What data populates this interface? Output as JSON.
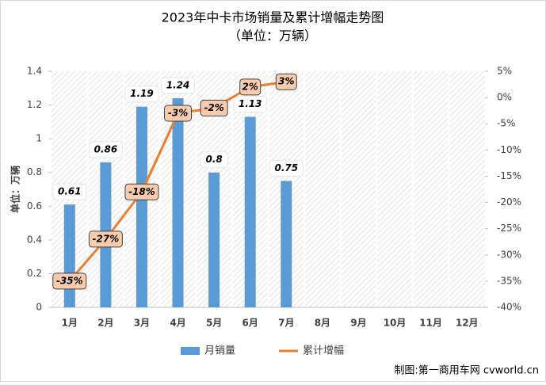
{
  "chart_data": {
    "type": "bar_line",
    "title": "2023年中卡市场销量及累计增幅走势图",
    "subtitle": "（单位：万辆）",
    "y_label": "单位：万辆",
    "source": "制图:第一商用车网 cvworld.cn",
    "categories": [
      "1月",
      "2月",
      "3月",
      "4月",
      "5月",
      "6月",
      "7月",
      "8月",
      "9月",
      "10月",
      "11月",
      "12月"
    ],
    "series": [
      {
        "name": "月销量",
        "color": "#5b9bd5",
        "type": "bar",
        "values": [
          0.61,
          0.86,
          1.19,
          1.24,
          0.8,
          1.13,
          0.75,
          null,
          null,
          null,
          null,
          null
        ]
      },
      {
        "name": "累计增幅",
        "color": "#ed7d31",
        "type": "line",
        "axis": "y2",
        "values": [
          -35,
          -27,
          -18,
          -3,
          -2,
          2,
          3,
          null,
          null,
          null,
          null,
          null
        ],
        "value_labels": [
          "-35%",
          "-27%",
          "-18%",
          "-3%",
          "-2%",
          "2%",
          "3%",
          null,
          null,
          null,
          null,
          null
        ]
      }
    ],
    "ylim": [
      0,
      1.4
    ],
    "yticks": [
      0,
      0.2,
      0.4,
      0.6,
      0.8,
      1,
      1.2,
      1.4
    ],
    "y2lim": [
      -40,
      5
    ],
    "y2ticks": [
      {
        "value": -40,
        "label": "-40%"
      },
      {
        "value": -35,
        "label": "-35%"
      },
      {
        "value": -30,
        "label": "-30%"
      },
      {
        "value": -25,
        "label": "-25%"
      },
      {
        "value": -20,
        "label": "-20%"
      },
      {
        "value": -15,
        "label": "-15%"
      },
      {
        "value": -10,
        "label": "-10%"
      },
      {
        "value": -5,
        "label": "-5%"
      },
      {
        "value": 0,
        "label": "0%"
      },
      {
        "value": 5,
        "label": "5%"
      }
    ],
    "legend": "bottom"
  }
}
